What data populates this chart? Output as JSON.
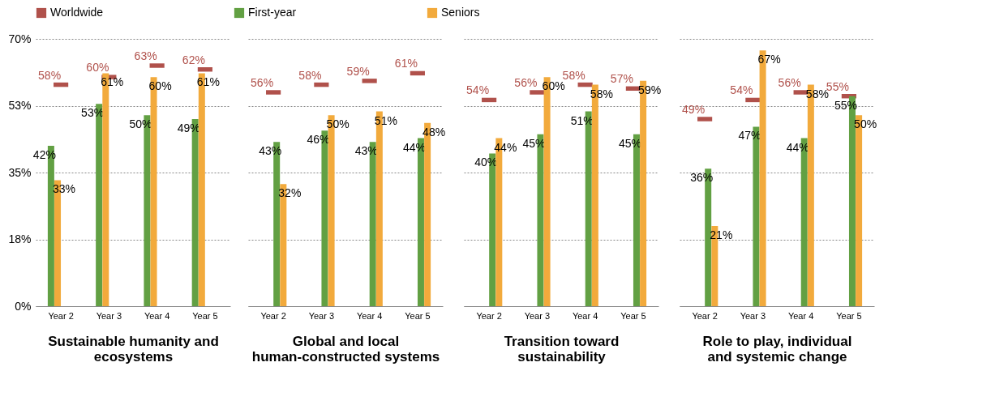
{
  "chart_data": [
    {
      "type": "bar",
      "xlabel": "Sustainable humanity and ecosystems",
      "categories": [
        "Year 2",
        "Year 3",
        "Year 4",
        "Year 5"
      ],
      "ylim": [
        0,
        70
      ],
      "yticks": [
        {
          "value": 0,
          "label": "0%"
        },
        {
          "value": 17.5,
          "label": "18%"
        },
        {
          "value": 35,
          "label": "35%"
        },
        {
          "value": 52.5,
          "label": "53%"
        },
        {
          "value": 70,
          "label": "70%"
        }
      ],
      "grid": "y",
      "legend": "top",
      "series": [
        {
          "name": "Worldwide",
          "type": "scatter",
          "color": "#b0514b",
          "values": [
            58,
            60,
            63,
            62
          ],
          "value_labels": [
            "58%",
            "60%",
            "63%",
            "62%"
          ]
        },
        {
          "name": "First-year",
          "color": "#62a043",
          "values": [
            42,
            53,
            50,
            49
          ],
          "value_labels": [
            "42%",
            "53%",
            "50%",
            "49%"
          ]
        },
        {
          "name": "Seniors",
          "color": "#f2aa3c",
          "values": [
            33,
            61,
            60,
            61
          ],
          "value_labels": [
            "33%",
            "61%",
            "60%",
            "61%"
          ]
        }
      ]
    },
    {
      "type": "bar",
      "xlabel": "Global and local human-constructed systems",
      "categories": [
        "Year 2",
        "Year 3",
        "Year 4",
        "Year 5"
      ],
      "ylim": [
        0,
        70
      ],
      "yticks": [
        {
          "value": 0,
          "label": null
        },
        {
          "value": 17.5,
          "label": null
        },
        {
          "value": 35,
          "label": null
        },
        {
          "value": 52.5,
          "label": null
        },
        {
          "value": 70,
          "label": null
        }
      ],
      "grid": "y",
      "tick_labels": "x",
      "series": [
        {
          "type": "scatter",
          "color": "#b0514b",
          "values": [
            56,
            58,
            59,
            61
          ],
          "value_labels": [
            "56%",
            "58%",
            "59%",
            "61%"
          ]
        },
        {
          "color": "#62a043",
          "values": [
            43,
            46,
            43,
            44
          ],
          "value_labels": [
            "43%",
            "46%",
            "43%",
            "44%"
          ]
        },
        {
          "color": "#f2aa3c",
          "values": [
            32,
            50,
            51,
            48
          ],
          "value_labels": [
            "32%",
            "50%",
            "51%",
            "48%"
          ]
        }
      ]
    },
    {
      "type": "bar",
      "xlabel": "Transition toward sustainability",
      "categories": [
        "Year 2",
        "Year 3",
        "Year 4",
        "Year 5"
      ],
      "ylim": [
        0,
        70
      ],
      "yticks": [
        {
          "value": 0,
          "label": null
        },
        {
          "value": 17.5,
          "label": null
        },
        {
          "value": 35,
          "label": null
        },
        {
          "value": 52.5,
          "label": null
        },
        {
          "value": 70,
          "label": null
        }
      ],
      "grid": "y",
      "tick_labels": "x",
      "series": [
        {
          "type": "scatter",
          "color": "#b0514b",
          "values": [
            54,
            56,
            58,
            57
          ],
          "value_labels": [
            "54%",
            "56%",
            "58%",
            "57%"
          ]
        },
        {
          "color": "#62a043",
          "values": [
            40,
            45,
            51,
            45
          ],
          "value_labels": [
            "40%",
            "45%",
            "51%",
            "45%"
          ]
        },
        {
          "color": "#f2aa3c",
          "values": [
            44,
            60,
            58,
            59
          ],
          "value_labels": [
            "44%",
            "60%",
            "58%",
            "59%"
          ]
        }
      ]
    },
    {
      "type": "bar",
      "xlabel": "Role to play, individual and systemic change",
      "categories": [
        "Year 2",
        "Year 3",
        "Year 4",
        "Year 5"
      ],
      "ylim": [
        0,
        70
      ],
      "yticks": [
        {
          "value": 0,
          "label": null
        },
        {
          "value": 17.5,
          "label": null
        },
        {
          "value": 35,
          "label": null
        },
        {
          "value": 52.5,
          "label": null
        },
        {
          "value": 70,
          "label": null
        }
      ],
      "grid": "y",
      "tick_labels": "x",
      "series": [
        {
          "type": "scatter",
          "color": "#b0514b",
          "values": [
            49,
            54,
            56,
            55
          ],
          "value_labels": [
            "49%",
            "54%",
            "56%",
            "55%"
          ]
        },
        {
          "color": "#62a043",
          "values": [
            36,
            47,
            44,
            55
          ],
          "value_labels": [
            "36%",
            "47%",
            "44%",
            "55%"
          ]
        },
        {
          "color": "#f2aa3c",
          "values": [
            21,
            67,
            58,
            50
          ],
          "value_labels": [
            "21%",
            "67%",
            "58%",
            "50%"
          ]
        }
      ]
    }
  ]
}
